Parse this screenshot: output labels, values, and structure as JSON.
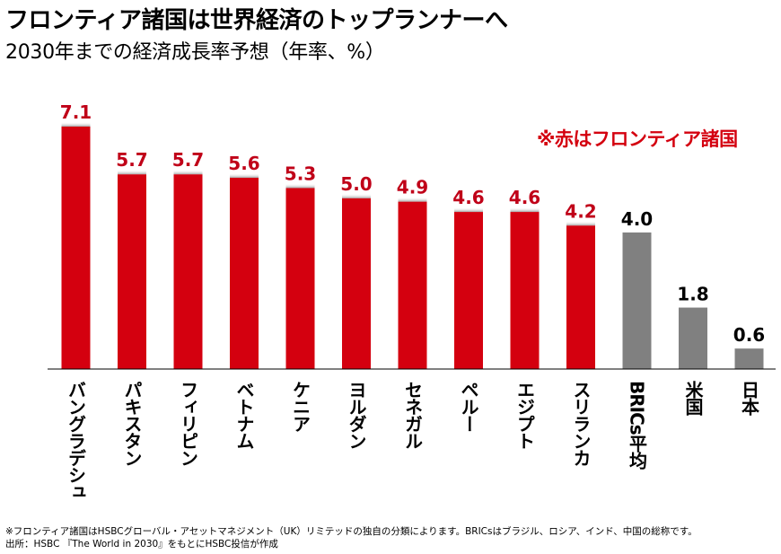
{
  "header": {
    "title": "フロンティア諸国は世界経済のトップランナーへ",
    "subtitle": "2030年までの経済成長率予想（年率、%）"
  },
  "legend_note": "※赤はフロンティア諸国",
  "colors": {
    "frontier": "#d4000f",
    "other": "#808080",
    "frontier_label": "#c00018",
    "other_label": "#000000"
  },
  "chart_data": {
    "type": "bar",
    "title": "フロンティア諸国は世界経済のトップランナーへ",
    "subtitle": "2030年までの経済成長率予想（年率、%）",
    "xlabel": "",
    "ylabel": "",
    "ylim": [
      0,
      7.1
    ],
    "grid": false,
    "categories": [
      "バングラデシュ",
      "パキスタン",
      "フィリピン",
      "ベトナム",
      "ケニア",
      "ヨルダン",
      "セネガル",
      "ペルー",
      "エジプト",
      "スリランカ",
      "BRICs平均",
      "米国",
      "日本"
    ],
    "values": [
      7.1,
      5.7,
      5.7,
      5.6,
      5.3,
      5.0,
      4.9,
      4.6,
      4.6,
      4.2,
      4.0,
      1.8,
      0.6
    ],
    "data_labels": [
      "7.1",
      "5.7",
      "5.7",
      "5.6",
      "5.3",
      "5.0",
      "4.9",
      "4.6",
      "4.6",
      "4.2",
      "4.0",
      "1.8",
      "0.6"
    ],
    "group": [
      "frontier",
      "frontier",
      "frontier",
      "frontier",
      "frontier",
      "frontier",
      "frontier",
      "frontier",
      "frontier",
      "frontier",
      "other",
      "other",
      "other"
    ],
    "legend": "※赤はフロンティア諸国"
  },
  "footnotes": [
    "※フロンティア諸国はHSBCグローバル・アセットマネジメント（UK）リミテッドの独自の分類によります。BRICsはブラジル、ロシア、インド、中国の総称です。",
    "出所：HSBC 『The World in 2030』をもとにHSBC投信が作成"
  ]
}
